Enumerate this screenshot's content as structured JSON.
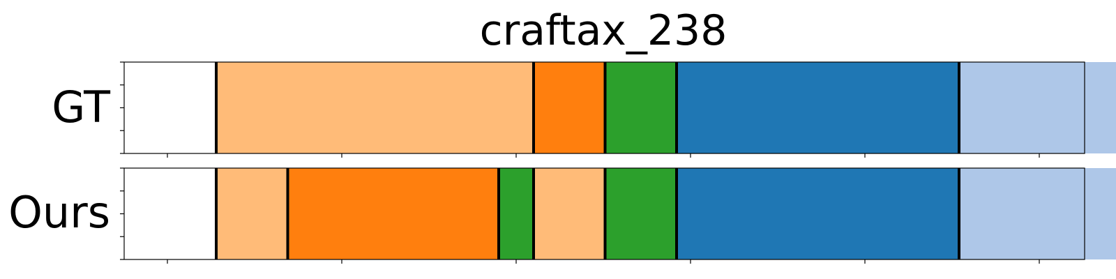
{
  "chart_data": {
    "type": "bar",
    "title": "craftax_238",
    "x_range": [
      0,
      275
    ],
    "boundary_color": "#000000",
    "rows": [
      {
        "label": "GT",
        "segments": [
          {
            "start": 14,
            "end": 105,
            "color": "#ffbb78"
          },
          {
            "start": 105,
            "end": 125.5,
            "color": "#ff7f0e"
          },
          {
            "start": 125.5,
            "end": 146,
            "color": "#2ca02c"
          },
          {
            "start": 146,
            "end": 227,
            "color": "#1f77b4"
          },
          {
            "start": 227,
            "end": 289,
            "color": "#aec7e8"
          }
        ]
      },
      {
        "label": "Ours",
        "segments": [
          {
            "start": 14,
            "end": 34.5,
            "color": "#ffbb78"
          },
          {
            "start": 34.5,
            "end": 95,
            "color": "#ff7f0e"
          },
          {
            "start": 95,
            "end": 105,
            "color": "#2ca02c"
          },
          {
            "start": 105,
            "end": 125.5,
            "color": "#ffbb78"
          },
          {
            "start": 125.5,
            "end": 146,
            "color": "#2ca02c"
          },
          {
            "start": 146,
            "end": 227,
            "color": "#1f77b4"
          },
          {
            "start": 227,
            "end": 289,
            "color": "#aec7e8"
          }
        ]
      }
    ]
  }
}
